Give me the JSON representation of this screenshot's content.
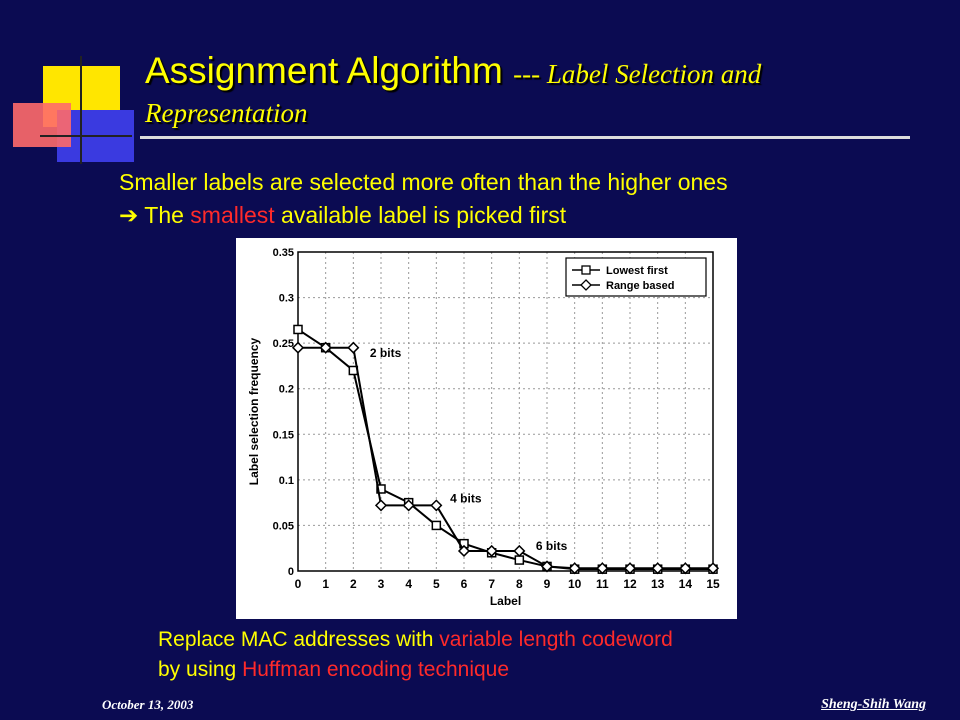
{
  "slide": {
    "title_main": "Assignment Algorithm",
    "title_sub": "--- Label Selection and",
    "title_line2": "Representation"
  },
  "bullets": {
    "line1": "Smaller labels are selected more often than the higher ones",
    "line2_prefix": "The",
    "line2_highlight": "smallest",
    "line2_suffix": "available label is picked first"
  },
  "captions": {
    "line1_prefix": "Replace MAC addresses with",
    "line1_highlight": "variable length codeword",
    "line2_prefix": "by using",
    "line2_highlight": "Huffman encoding technique"
  },
  "footer": {
    "date": "October 13, 2003",
    "author": "Sheng-Shih Wang"
  },
  "colors": {
    "background": "#0b0b52",
    "title": "#ffff00",
    "highlight": "#ff2a2a"
  },
  "chart_data": {
    "type": "line",
    "xlabel": "Label",
    "ylabel": "Label selection frequency",
    "xlim": [
      0,
      15
    ],
    "ylim": [
      0,
      0.35
    ],
    "x_ticks": [
      "0",
      "1",
      "2",
      "3",
      "4",
      "5",
      "6",
      "7",
      "8",
      "9",
      "10",
      "11",
      "12",
      "13",
      "14",
      "15"
    ],
    "y_ticks": [
      "0",
      "0.05",
      "0.1",
      "0.15",
      "0.2",
      "0.25",
      "0.3",
      "0.35"
    ],
    "grid": true,
    "legend_position": "top-right",
    "series": [
      {
        "name": "Lowest first",
        "marker": "square",
        "x": [
          0,
          1,
          2,
          3,
          4,
          5,
          6,
          7,
          8,
          9,
          10,
          11,
          12,
          13,
          14,
          15
        ],
        "values": [
          0.265,
          0.245,
          0.22,
          0.09,
          0.075,
          0.05,
          0.03,
          0.02,
          0.012,
          0.005,
          0.002,
          0.002,
          0.002,
          0.002,
          0.002,
          0.002
        ]
      },
      {
        "name": "Range based",
        "marker": "diamond",
        "x": [
          0,
          1,
          2,
          3,
          4,
          5,
          6,
          7,
          8,
          9,
          10,
          11,
          12,
          13,
          14,
          15
        ],
        "values": [
          0.245,
          0.245,
          0.245,
          0.072,
          0.072,
          0.072,
          0.022,
          0.022,
          0.022,
          0.005,
          0.003,
          0.003,
          0.003,
          0.003,
          0.003,
          0.003
        ]
      }
    ],
    "annotations": [
      {
        "text": "2 bits",
        "x": 2.6,
        "y": 0.235
      },
      {
        "text": "4 bits",
        "x": 5.5,
        "y": 0.075
      },
      {
        "text": "6 bits",
        "x": 8.6,
        "y": 0.023
      }
    ]
  }
}
